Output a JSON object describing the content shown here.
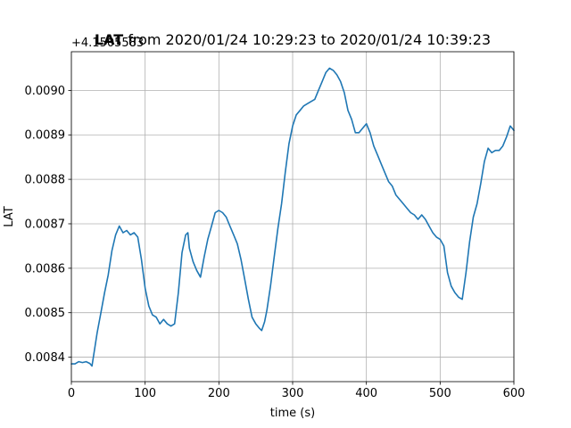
{
  "chart_data": {
    "type": "line",
    "title": "LAT from 2020/01/24 10:29:23 to 2020/01/24 10:39:23",
    "title_emphasis": "LAT",
    "title_rest": " from 2020/01/24 10:29:23 to 2020/01/24 10:39:23",
    "offset_label": "+4.1505583",
    "xlabel": "time (s)",
    "ylabel": "LAT",
    "xlim": [
      0,
      600
    ],
    "ylim": [
      0.008345,
      0.009087
    ],
    "grid": true,
    "xticks": [
      0,
      100,
      200,
      300,
      400,
      500,
      600
    ],
    "xtick_labels": [
      "0",
      "100",
      "200",
      "300",
      "400",
      "500",
      "600"
    ],
    "yticks": [
      0.0084,
      0.0085,
      0.0086,
      0.0087,
      0.0088,
      0.0089,
      0.009
    ],
    "ytick_labels": [
      "0.0084",
      "0.0085",
      "0.0086",
      "0.0087",
      "0.0088",
      "0.0089",
      "0.0090"
    ],
    "series": [
      {
        "color": "#1f77b4",
        "x": [
          0,
          5,
          10,
          15,
          20,
          25,
          28,
          35,
          40,
          45,
          50,
          55,
          60,
          65,
          70,
          75,
          80,
          85,
          90,
          95,
          100,
          105,
          110,
          115,
          120,
          125,
          130,
          135,
          140,
          145,
          150,
          155,
          158,
          160,
          165,
          170,
          175,
          180,
          185,
          190,
          195,
          200,
          205,
          210,
          215,
          220,
          225,
          230,
          235,
          240,
          245,
          250,
          255,
          258,
          262,
          265,
          270,
          275,
          280,
          285,
          290,
          295,
          300,
          305,
          310,
          315,
          320,
          325,
          330,
          335,
          340,
          345,
          350,
          355,
          360,
          365,
          370,
          375,
          380,
          385,
          390,
          395,
          400,
          405,
          410,
          415,
          420,
          425,
          430,
          435,
          440,
          445,
          450,
          455,
          460,
          465,
          470,
          475,
          480,
          485,
          490,
          495,
          500,
          505,
          510,
          515,
          520,
          525,
          530,
          535,
          540,
          545,
          550,
          555,
          560,
          565,
          570,
          575,
          580,
          585,
          590,
          595,
          600
        ],
        "y": [
          0.008385,
          0.008385,
          0.00839,
          0.008388,
          0.00839,
          0.008386,
          0.00838,
          0.008455,
          0.0085,
          0.008545,
          0.008585,
          0.00864,
          0.008675,
          0.008695,
          0.00868,
          0.008685,
          0.008675,
          0.00868,
          0.00867,
          0.00862,
          0.008555,
          0.008515,
          0.008495,
          0.00849,
          0.008475,
          0.008485,
          0.008475,
          0.00847,
          0.008475,
          0.008545,
          0.008635,
          0.008675,
          0.00868,
          0.008645,
          0.008615,
          0.008595,
          0.00858,
          0.008625,
          0.008665,
          0.008695,
          0.008725,
          0.00873,
          0.008725,
          0.008715,
          0.008695,
          0.008675,
          0.008655,
          0.00862,
          0.008575,
          0.00853,
          0.00849,
          0.008475,
          0.008465,
          0.00846,
          0.00848,
          0.008505,
          0.00856,
          0.008625,
          0.00869,
          0.008745,
          0.008815,
          0.00888,
          0.00892,
          0.008945,
          0.008955,
          0.008965,
          0.00897,
          0.008975,
          0.00898,
          0.009,
          0.00902,
          0.00904,
          0.00905,
          0.009045,
          0.009035,
          0.00902,
          0.008995,
          0.008955,
          0.008935,
          0.008905,
          0.008905,
          0.008915,
          0.008925,
          0.008905,
          0.008875,
          0.008855,
          0.008835,
          0.008815,
          0.008795,
          0.008785,
          0.008765,
          0.008755,
          0.008745,
          0.008735,
          0.008725,
          0.00872,
          0.00871,
          0.00872,
          0.00871,
          0.008695,
          0.00868,
          0.00867,
          0.008665,
          0.00865,
          0.00859,
          0.00856,
          0.008545,
          0.008535,
          0.00853,
          0.00859,
          0.00866,
          0.008715,
          0.008745,
          0.00879,
          0.00884,
          0.00887,
          0.00886,
          0.008865,
          0.008865,
          0.008875,
          0.008895,
          0.00892,
          0.00891
        ]
      }
    ]
  }
}
